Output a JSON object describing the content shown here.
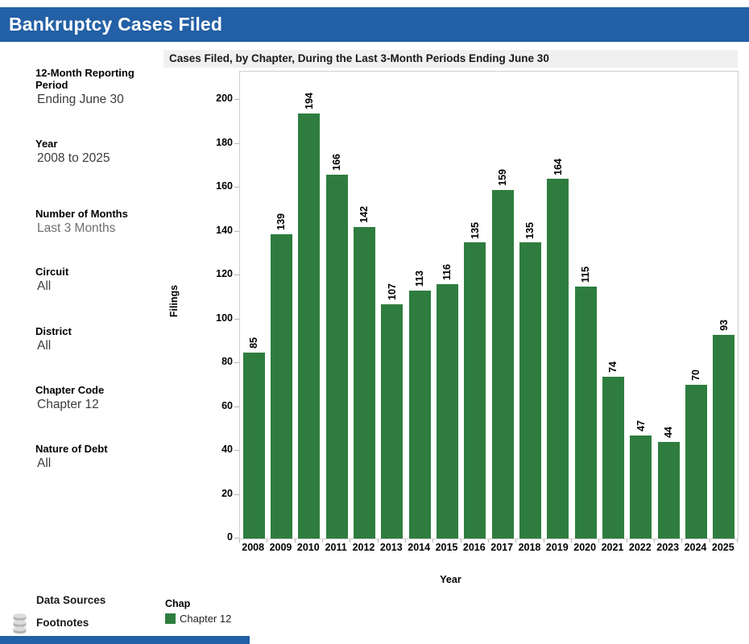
{
  "header": {
    "title": "Bankruptcy Cases Filed"
  },
  "filters": [
    {
      "label": "12-Month Reporting Period",
      "value": "Ending June 30"
    },
    {
      "label": "Year",
      "value": "2008 to 2025"
    },
    {
      "label": "Number of Months",
      "value": "Last 3 Months"
    },
    {
      "label": "Circuit",
      "value": "All"
    },
    {
      "label": "District",
      "value": "All"
    },
    {
      "label": "Chapter Code",
      "value": "Chapter 12"
    },
    {
      "label": "Nature of Debt",
      "value": "All"
    }
  ],
  "footer": {
    "data_sources": "Data Sources",
    "footnotes": "Footnotes"
  },
  "legend": {
    "title": "Chap",
    "items": [
      {
        "label": "Chapter 12",
        "color": "#2E7D3E"
      }
    ]
  },
  "chart_data": {
    "type": "bar",
    "title": "Cases Filed, by Chapter, During the Last 3-Month Periods Ending June 30",
    "categories": [
      "2008",
      "2009",
      "2010",
      "2011",
      "2012",
      "2013",
      "2014",
      "2015",
      "2016",
      "2017",
      "2018",
      "2019",
      "2020",
      "2021",
      "2022",
      "2023",
      "2024",
      "2025"
    ],
    "values": [
      85,
      139,
      194,
      166,
      142,
      107,
      113,
      116,
      135,
      159,
      135,
      164,
      115,
      74,
      47,
      44,
      70,
      93
    ],
    "series_name": "Chapter 12",
    "xlabel": "Year",
    "ylabel": "Filings",
    "ylim": [
      0,
      213
    ],
    "yticks": [
      0,
      20,
      40,
      60,
      80,
      100,
      120,
      140,
      160,
      180,
      200
    ],
    "bar_color": "#2E7D3E",
    "grid": false,
    "legend_position": "bottom-left",
    "value_label_style": "rotated-vertical-above-bar"
  },
  "colors": {
    "header_bg": "#2360A5",
    "title_strip_bg": "#F0F0F0",
    "bar": "#2E7D3E",
    "accent_strip": "#2360A5"
  }
}
